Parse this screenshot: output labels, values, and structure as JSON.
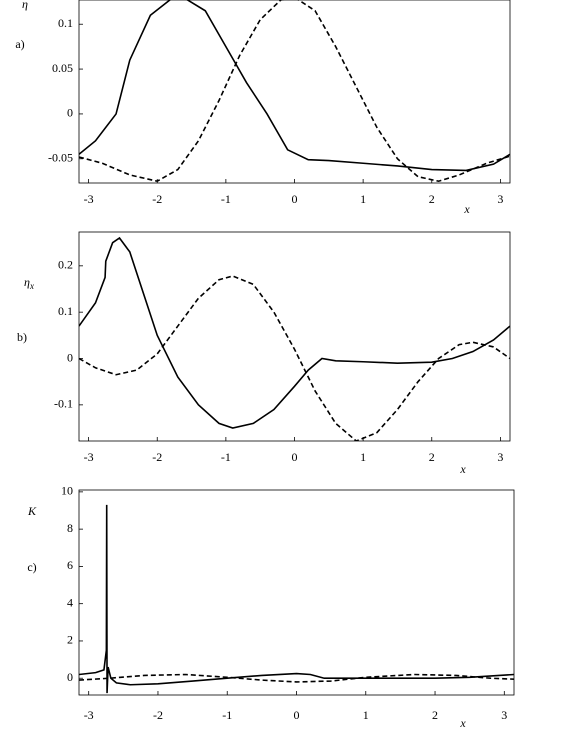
{
  "chart_data": [
    {
      "type": "line",
      "panel_label": "a)",
      "y_label": "η",
      "x_label": "x",
      "xlim": [
        -3.14,
        3.14
      ],
      "xticks": [
        -3,
        -2,
        -1,
        0,
        1,
        2,
        3
      ],
      "ylim": [
        -0.077,
        0.127
      ],
      "yticks": [
        -0.05,
        0,
        0.05,
        0.1
      ],
      "series": [
        {
          "color": "#000000",
          "linestyle": "solid",
          "x": [
            -3.14,
            -2.9,
            -2.6,
            -2.4,
            -2.1,
            -1.8,
            -1.6,
            -1.3,
            -1.0,
            -0.7,
            -0.4,
            -0.1,
            0.2,
            0.5,
            1.0,
            1.5,
            2.0,
            2.5,
            2.9,
            3.14
          ],
          "values": [
            -0.045,
            -0.03,
            0.0,
            0.06,
            0.11,
            0.128,
            0.129,
            0.115,
            0.075,
            0.035,
            0.0,
            -0.04,
            -0.051,
            -0.052,
            -0.055,
            -0.058,
            -0.062,
            -0.063,
            -0.056,
            -0.045
          ]
        },
        {
          "color": "#000000",
          "linestyle": "dashed",
          "x": [
            -3.14,
            -2.8,
            -2.4,
            -2.0,
            -1.7,
            -1.4,
            -1.1,
            -0.8,
            -0.5,
            -0.2,
            0,
            0.3,
            0.6,
            0.9,
            1.2,
            1.5,
            1.8,
            2.1,
            2.4,
            2.8,
            3.14
          ],
          "values": [
            -0.048,
            -0.055,
            -0.068,
            -0.075,
            -0.062,
            -0.03,
            0.015,
            0.065,
            0.105,
            0.127,
            0.13,
            0.115,
            0.075,
            0.03,
            -0.015,
            -0.05,
            -0.07,
            -0.075,
            -0.068,
            -0.055,
            -0.047
          ]
        }
      ]
    },
    {
      "type": "line",
      "panel_label": "b)",
      "y_label": "η",
      "y_label_sub": "x",
      "x_label": "x",
      "xlim": [
        -3.14,
        3.14
      ],
      "xticks": [
        -3,
        -2,
        -1,
        0,
        1,
        2,
        3
      ],
      "ylim": [
        -0.178,
        0.273
      ],
      "yticks": [
        -0.1,
        0,
        0.1,
        0.2
      ],
      "series": [
        {
          "color": "#000000",
          "linestyle": "solid",
          "x": [
            -3.14,
            -2.9,
            -2.76,
            -2.75,
            -2.65,
            -2.55,
            -2.4,
            -2.2,
            -2.0,
            -1.7,
            -1.4,
            -1.1,
            -0.9,
            -0.6,
            -0.3,
            0,
            0.2,
            0.4,
            0.6,
            1.0,
            1.5,
            2.0,
            2.3,
            2.6,
            2.9,
            3.14
          ],
          "values": [
            0.07,
            0.12,
            0.175,
            0.21,
            0.25,
            0.26,
            0.23,
            0.14,
            0.05,
            -0.04,
            -0.1,
            -0.14,
            -0.15,
            -0.14,
            -0.11,
            -0.06,
            -0.025,
            0.0,
            -0.005,
            -0.007,
            -0.01,
            -0.008,
            0.0,
            0.015,
            0.04,
            0.07
          ]
        },
        {
          "color": "#000000",
          "linestyle": "dashed",
          "x": [
            -3.14,
            -2.9,
            -2.6,
            -2.3,
            -2.0,
            -1.7,
            -1.4,
            -1.1,
            -0.9,
            -0.6,
            -0.3,
            0,
            0.3,
            0.6,
            0.9,
            1.2,
            1.5,
            1.8,
            2.1,
            2.4,
            2.6,
            2.9,
            3.14
          ],
          "values": [
            0.0,
            -0.02,
            -0.035,
            -0.025,
            0.01,
            0.07,
            0.13,
            0.17,
            0.178,
            0.16,
            0.1,
            0.02,
            -0.07,
            -0.14,
            -0.178,
            -0.16,
            -0.11,
            -0.05,
            0.0,
            0.03,
            0.035,
            0.025,
            0.0
          ]
        }
      ]
    },
    {
      "type": "line",
      "panel_label": "c)",
      "y_label": "K",
      "x_label": "x",
      "xlim": [
        -3.14,
        3.14
      ],
      "xticks": [
        -3,
        -2,
        -1,
        0,
        1,
        2,
        3
      ],
      "ylim": [
        -0.9,
        10.1
      ],
      "yticks": [
        0,
        2,
        4,
        6,
        8,
        10
      ],
      "series": [
        {
          "color": "#000000",
          "linestyle": "solid",
          "x": [
            -3.14,
            -2.9,
            -2.78,
            -2.745,
            -2.74,
            -2.735,
            -2.72,
            -2.68,
            -2.6,
            -2.4,
            -2.0,
            -1.5,
            -1.0,
            -0.5,
            0,
            0.2,
            0.4,
            0.8,
            1.5,
            2.0,
            2.5,
            3.14
          ],
          "values": [
            0.2,
            0.3,
            0.45,
            1.5,
            9.3,
            -0.8,
            0.6,
            0.0,
            -0.25,
            -0.35,
            -0.3,
            -0.15,
            0.0,
            0.15,
            0.25,
            0.2,
            0.0,
            0.0,
            0.0,
            0.0,
            0.05,
            0.2
          ]
        },
        {
          "color": "#000000",
          "linestyle": "dashed",
          "x": [
            -3.14,
            -2.7,
            -2.2,
            -1.6,
            -1.0,
            -0.5,
            0,
            0.5,
            1.0,
            1.7,
            2.3,
            2.8,
            3.14
          ],
          "values": [
            -0.1,
            0.0,
            0.15,
            0.2,
            0.05,
            -0.1,
            -0.2,
            -0.15,
            0.05,
            0.2,
            0.15,
            0.0,
            -0.05
          ]
        }
      ]
    }
  ]
}
